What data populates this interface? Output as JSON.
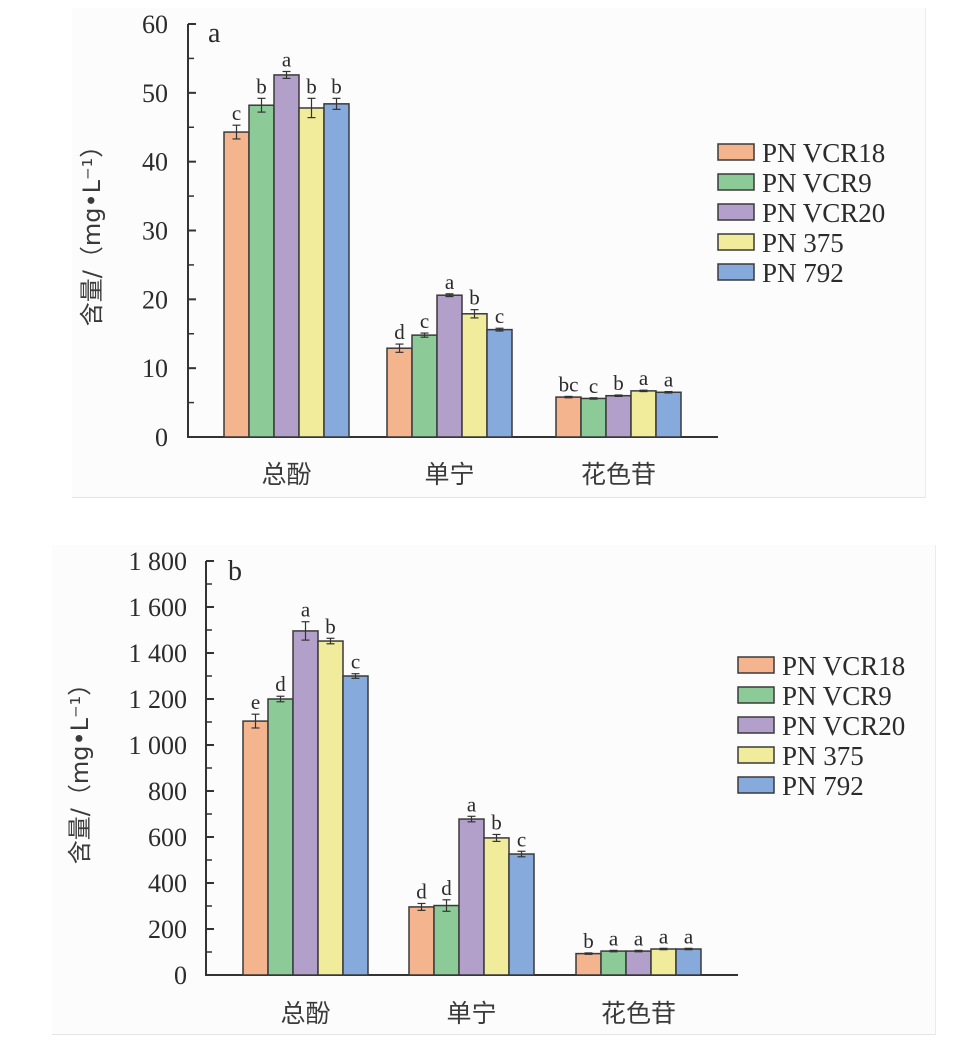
{
  "chart_data": [
    {
      "type": "bar",
      "panel_tag": "a",
      "title": "",
      "xlabel": "",
      "ylabel": "含量/（mg•L⁻¹）",
      "ylim": [
        0,
        60
      ],
      "yticks": [
        0,
        10,
        20,
        30,
        40,
        50,
        60
      ],
      "ytick_labels": [
        "0",
        "10",
        "20",
        "30",
        "40",
        "50",
        "60"
      ],
      "minor_tick_step": 5,
      "grid": false,
      "legend_position": "right",
      "categories": [
        "总酚",
        "单宁",
        "花色苷"
      ],
      "series": [
        {
          "name": "PN VCR18",
          "color": "#f4b48e",
          "values": [
            44.3,
            12.9,
            5.8
          ],
          "errors": [
            1.0,
            0.6,
            0.1
          ],
          "sig": [
            "c",
            "d",
            "bc"
          ]
        },
        {
          "name": "PN VCR9",
          "color": "#8ccb98",
          "values": [
            48.2,
            14.8,
            5.6
          ],
          "errors": [
            1.0,
            0.3,
            0.1
          ],
          "sig": [
            "b",
            "c",
            "c"
          ]
        },
        {
          "name": "PN VCR20",
          "color": "#b2a0cb",
          "values": [
            52.6,
            20.6,
            6.0
          ],
          "errors": [
            0.5,
            0.2,
            0.1
          ],
          "sig": [
            "a",
            "a",
            "b"
          ]
        },
        {
          "name": "PN 375",
          "color": "#f0ec9c",
          "values": [
            47.8,
            17.9,
            6.7
          ],
          "errors": [
            1.4,
            0.6,
            0.1
          ],
          "sig": [
            "b",
            "b",
            "a"
          ]
        },
        {
          "name": "PN 792",
          "color": "#86aadb",
          "values": [
            48.4,
            15.6,
            6.5
          ],
          "errors": [
            0.8,
            0.2,
            0.1
          ],
          "sig": [
            "b",
            "c",
            "a"
          ]
        }
      ]
    },
    {
      "type": "bar",
      "panel_tag": "b",
      "title": "",
      "xlabel": "",
      "ylabel": "含量/（mg•L⁻¹）",
      "ylim": [
        0,
        1800
      ],
      "yticks": [
        0,
        200,
        400,
        600,
        800,
        1000,
        1200,
        1400,
        1600,
        1800
      ],
      "ytick_labels": [
        "0",
        "200",
        "400",
        "600",
        "800",
        "1 000",
        "1 200",
        "1 400",
        "1 600",
        "1 800"
      ],
      "minor_tick_step": 100,
      "grid": false,
      "legend_position": "right",
      "categories": [
        "总酚",
        "单宁",
        "花色苷"
      ],
      "series": [
        {
          "name": "PN VCR18",
          "color": "#f4b48e",
          "values": [
            1104,
            296,
            93
          ],
          "errors": [
            30,
            15,
            3
          ],
          "sig": [
            "e",
            "d",
            "b"
          ]
        },
        {
          "name": "PN VCR9",
          "color": "#8ccb98",
          "values": [
            1200,
            302,
            104
          ],
          "errors": [
            12,
            25,
            3
          ],
          "sig": [
            "d",
            "d",
            "a"
          ]
        },
        {
          "name": "PN VCR20",
          "color": "#b2a0cb",
          "values": [
            1496,
            678,
            104
          ],
          "errors": [
            40,
            12,
            3
          ],
          "sig": [
            "a",
            "a",
            "a"
          ]
        },
        {
          "name": "PN 375",
          "color": "#f0ec9c",
          "values": [
            1452,
            596,
            113
          ],
          "errors": [
            12,
            15,
            3
          ],
          "sig": [
            "b",
            "b",
            "a"
          ]
        },
        {
          "name": "PN 792",
          "color": "#86aadb",
          "values": [
            1300,
            526,
            113
          ],
          "errors": [
            10,
            12,
            3
          ],
          "sig": [
            "c",
            "c",
            "a"
          ]
        }
      ]
    }
  ]
}
